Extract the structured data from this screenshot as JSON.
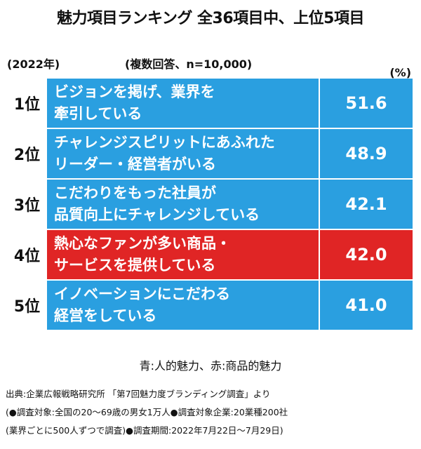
{
  "title": "魅力項目ランキング 全36項目中、上位5項目",
  "year": "(2022年)",
  "note": "(複数回答、n=10,000)",
  "unit": "(%)",
  "colors": {
    "blue": "#2a9fe0",
    "red": "#e02525"
  },
  "chart_data": {
    "type": "table",
    "rows": [
      {
        "rank": "1位",
        "label": "ビジョンを掲げ、業界を\n牽引している",
        "value": 51.6,
        "category": "人的魅力"
      },
      {
        "rank": "2位",
        "label": "チャレンジスピリットにあふれた\nリーダー・経営者がいる",
        "value": 48.9,
        "category": "人的魅力"
      },
      {
        "rank": "3位",
        "label": "こだわりをもった社員が\n品質向上にチャレンジしている",
        "value": 42.1,
        "category": "人的魅力"
      },
      {
        "rank": "4位",
        "label": "熱心なファンが多い商品・\nサービスを提供している",
        "value": 42.0,
        "category": "商品的魅力"
      },
      {
        "rank": "5位",
        "label": "イノベーションにこだわる\n経営をしている",
        "value": 41.0,
        "category": "人的魅力"
      }
    ]
  },
  "legend": "青:人的魅力、赤:商品的魅力",
  "source_lines": [
    "出典:企業広報戦略研究所 「第7回魅力度ブランディング調査」より",
    "(●調査対象:全国の20〜69歳の男女1万人●調査対象企業:20業種200社",
    "(業界ごとに500人ずつで調査)●調査期間:2022年7月22日〜7月29日)"
  ]
}
